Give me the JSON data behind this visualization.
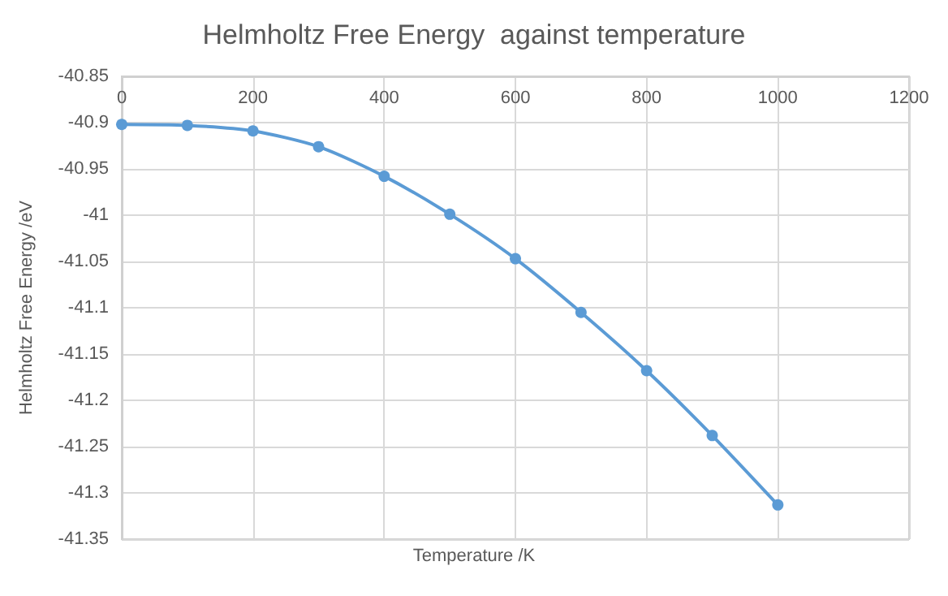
{
  "chart_data": {
    "type": "line",
    "title": "Helmholtz Free Energy  against temperature",
    "xlabel": "Temperature /K",
    "ylabel": "Helmholtz Free Energy /eV",
    "x": [
      0,
      100,
      200,
      300,
      400,
      500,
      600,
      700,
      800,
      900,
      1000
    ],
    "series": [
      {
        "color": "#5b9bd5",
        "values": [
          -40.902,
          -40.903,
          -40.909,
          -40.926,
          -40.958,
          -40.999,
          -41.047,
          -41.105,
          -41.168,
          -41.238,
          -41.313
        ]
      }
    ],
    "xlim": [
      0,
      1200
    ],
    "xticks": [
      0,
      200,
      400,
      600,
      800,
      1000,
      1200
    ],
    "ylim": [
      -41.35,
      -40.85
    ],
    "yticks": [
      -40.85,
      -40.9,
      -40.95,
      -41,
      -41.05,
      -41.1,
      -41.15,
      -41.2,
      -41.25,
      -41.3,
      -41.35
    ],
    "grid": true,
    "marker": "circle",
    "line_style": "solid"
  }
}
